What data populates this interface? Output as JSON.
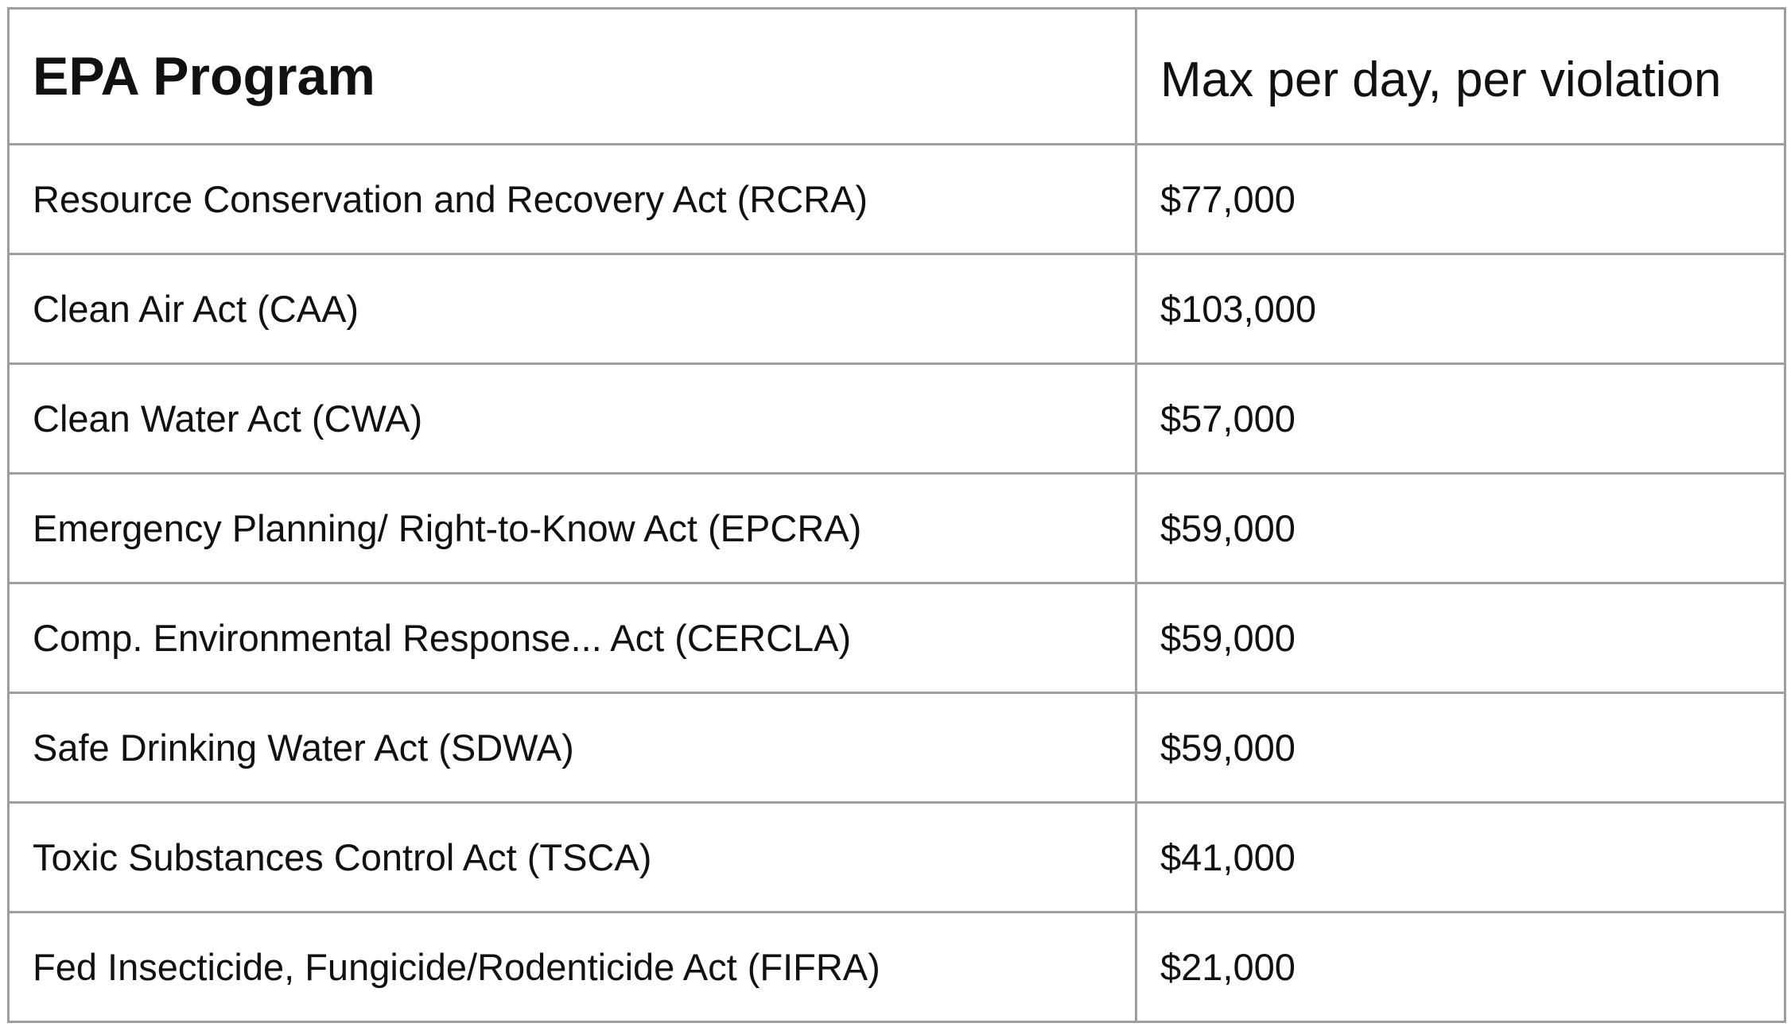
{
  "table": {
    "headers": [
      "EPA Program",
      "Max per day, per violation"
    ],
    "rows": [
      {
        "program": "Resource Conservation and Recovery Act (RCRA)",
        "max": "$77,000"
      },
      {
        "program": "Clean Air Act (CAA)",
        "max": "$103,000"
      },
      {
        "program": "Clean Water Act (CWA)",
        "max": "$57,000"
      },
      {
        "program": "Emergency Planning/ Right-to-Know Act (EPCRA)",
        "max": "$59,000"
      },
      {
        "program": "Comp. Environmental Response... Act (CERCLA)",
        "max": "$59,000"
      },
      {
        "program": "Safe Drinking Water Act (SDWA)",
        "max": "$59,000"
      },
      {
        "program": "Toxic Substances Control Act (TSCA)",
        "max": "$41,000"
      },
      {
        "program": "Fed Insecticide, Fungicide/Rodenticide Act (FIFRA)",
        "max": "$21,000"
      }
    ]
  }
}
